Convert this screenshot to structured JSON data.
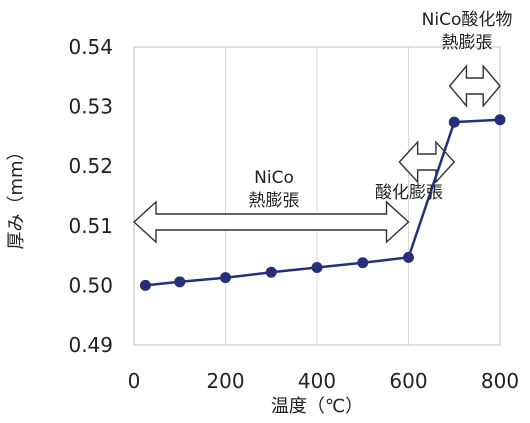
{
  "chart_data": {
    "type": "line",
    "title": "",
    "xlabel": "温度（℃）",
    "ylabel": "厚み（mm）",
    "xlim": [
      0,
      800
    ],
    "ylim": [
      0.49,
      0.54
    ],
    "x_ticks": [
      "0",
      "200",
      "400",
      "600",
      "800"
    ],
    "y_ticks": [
      "0.54",
      "0.53",
      "0.52",
      "0.51",
      "0.50",
      "0.49"
    ],
    "grid": "vertical",
    "series": [
      {
        "color": "#262f7a",
        "points": [
          {
            "x": 25,
            "y": 0.5
          },
          {
            "x": 100,
            "y": 0.5006
          },
          {
            "x": 200,
            "y": 0.5013
          },
          {
            "x": 300,
            "y": 0.5022
          },
          {
            "x": 400,
            "y": 0.503
          },
          {
            "x": 500,
            "y": 0.5038
          },
          {
            "x": 600,
            "y": 0.5047
          },
          {
            "x": 700,
            "y": 0.5274
          },
          {
            "x": 800,
            "y": 0.5278
          }
        ]
      }
    ],
    "annotations": [
      {
        "lines": [
          "NiCo",
          "熱膨張"
        ],
        "range": [
          0,
          600
        ]
      },
      {
        "lines": [
          "酸化膨張"
        ],
        "range": [
          580,
          700
        ]
      },
      {
        "lines": [
          "NiCo酸化物",
          "熱膨張"
        ],
        "range": [
          690,
          800
        ]
      }
    ]
  }
}
